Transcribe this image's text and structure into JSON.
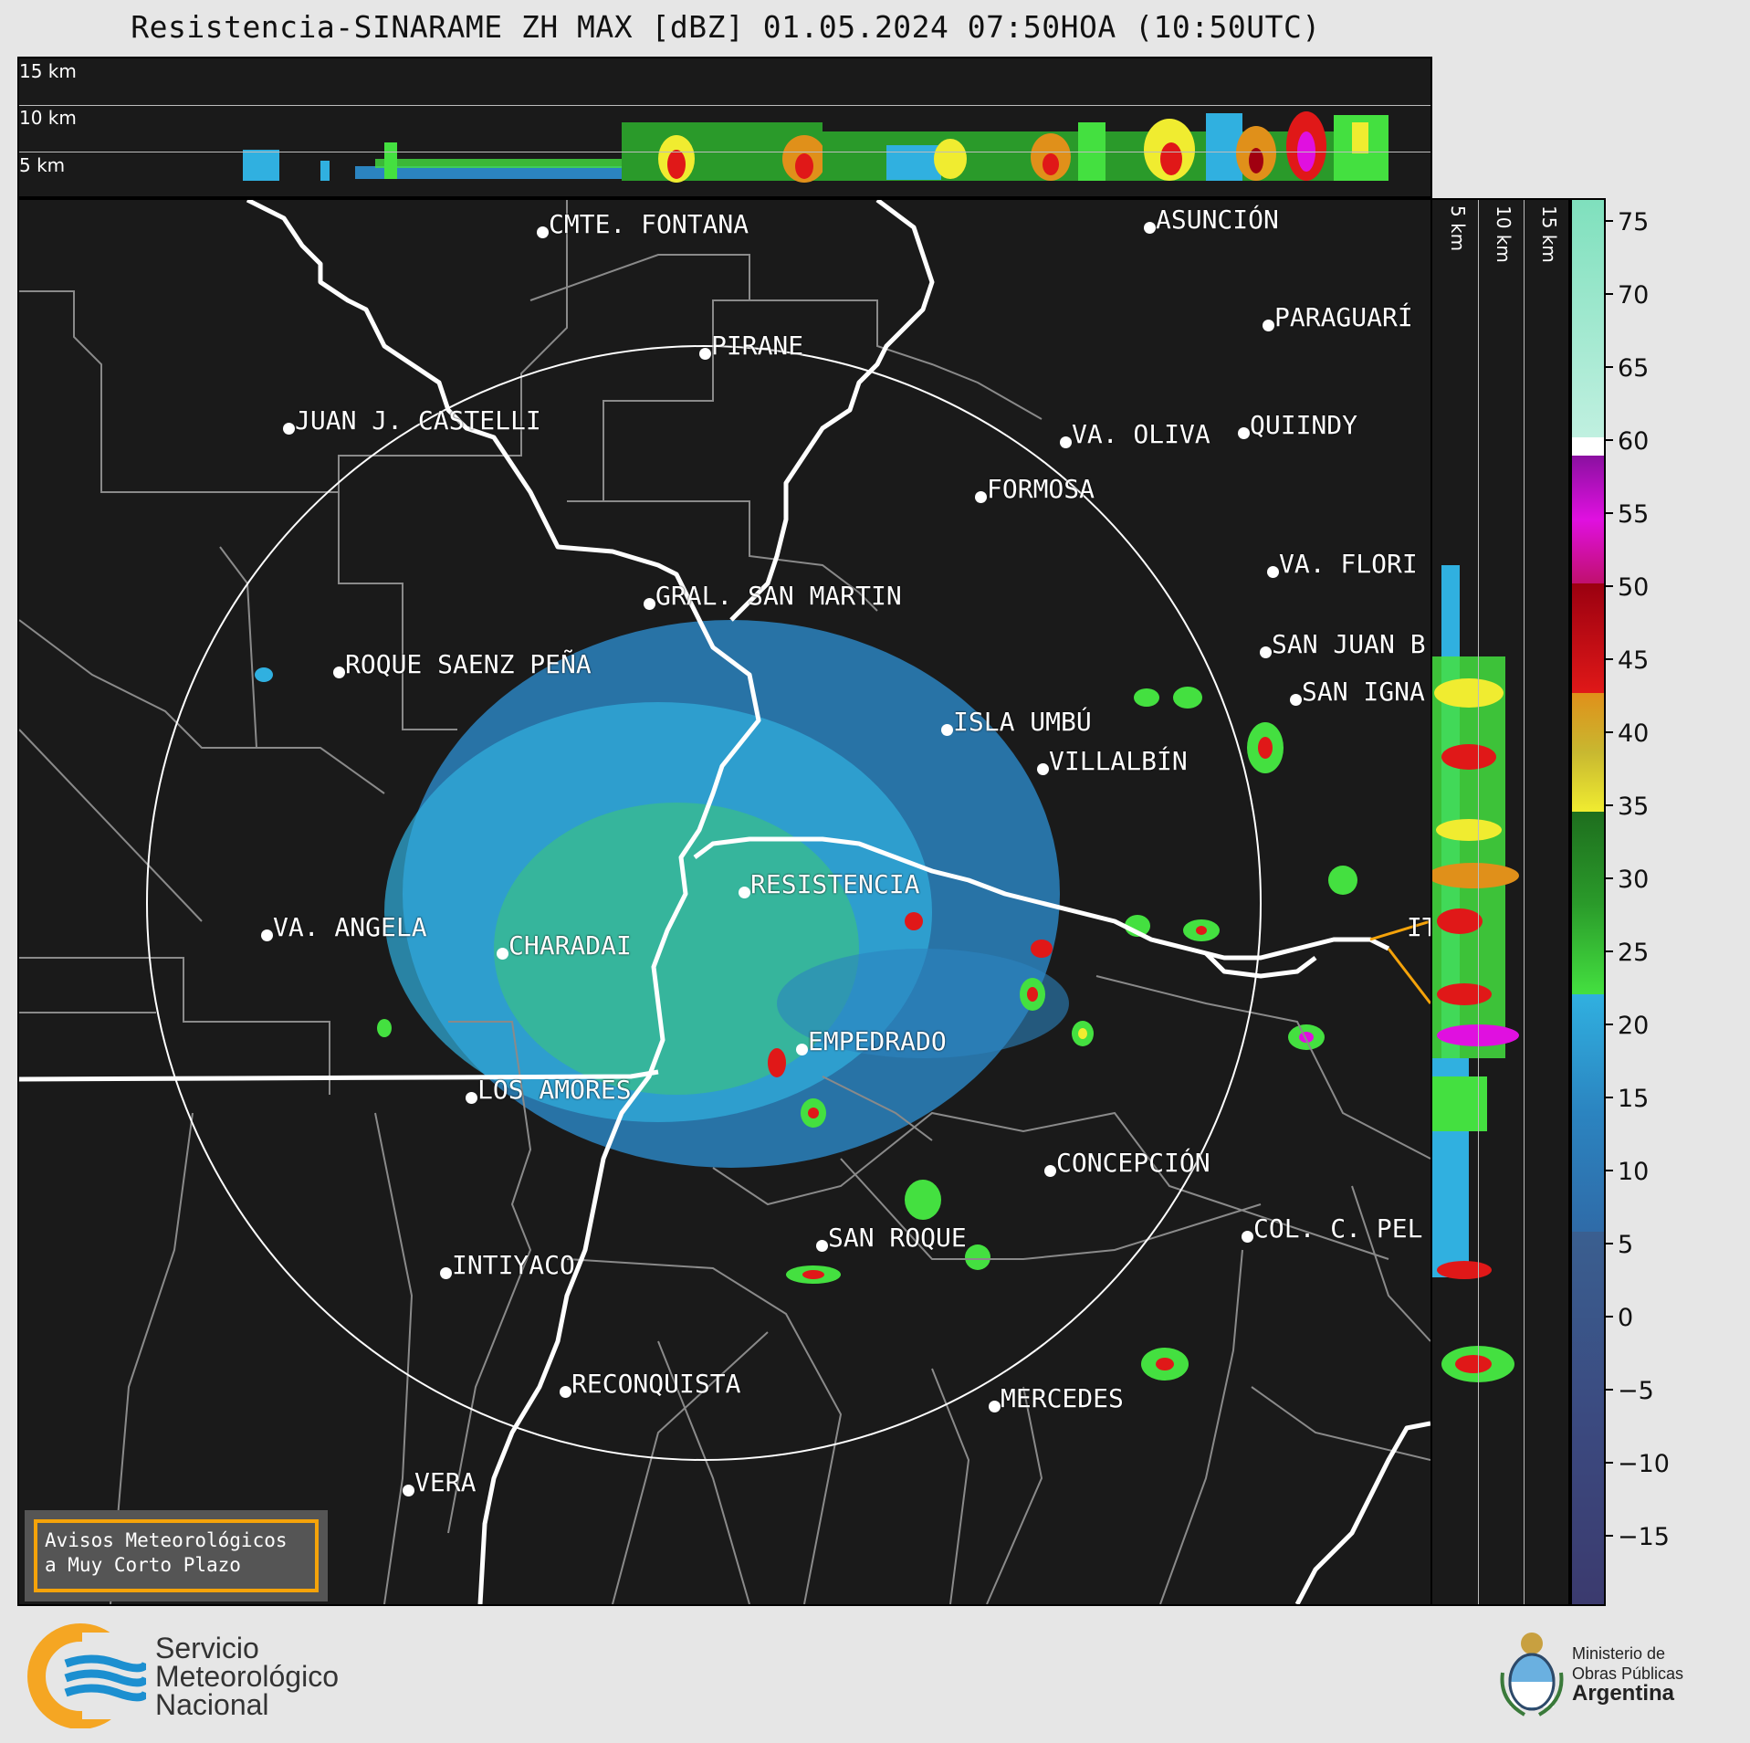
{
  "title": "Resistencia-SINARAME ZH MAX [dBZ] 01.05.2024 07:50HOA (10:50UTC)",
  "altitude_labels": [
    "15 km",
    "10 km",
    "5 km"
  ],
  "cities": [
    {
      "name": "CMTE. FONTANA"
    },
    {
      "name": "PIRANE"
    },
    {
      "name": "JUAN J. CASTELLI"
    },
    {
      "name": "ASUNCIÓN"
    },
    {
      "name": "PARAGUARÍ"
    },
    {
      "name": "QUIINDY"
    },
    {
      "name": "VA. OLIVA"
    },
    {
      "name": "FORMOSA"
    },
    {
      "name": "VA. FLORI"
    },
    {
      "name": "GRAL. SAN MARTIN"
    },
    {
      "name": "SAN JUAN B"
    },
    {
      "name": "ROQUE SAENZ PEÑA"
    },
    {
      "name": "SAN IGNA"
    },
    {
      "name": "ISLA UMBÚ"
    },
    {
      "name": "VILLALBÍN"
    },
    {
      "name": "RESISTENCIA"
    },
    {
      "name": "VA. ANGELA"
    },
    {
      "name": "CHARADAI"
    },
    {
      "name": "IT"
    },
    {
      "name": "EMPEDRADO"
    },
    {
      "name": "LOS AMORES"
    },
    {
      "name": "CONCEPCIÓN"
    },
    {
      "name": "SAN ROQUE"
    },
    {
      "name": "COL. C. PEL"
    },
    {
      "name": "INTIYACO"
    },
    {
      "name": "RECONQUISTA"
    },
    {
      "name": "MERCEDES"
    },
    {
      "name": "VERA"
    }
  ],
  "colorbar": {
    "ticks": [
      "75",
      "70",
      "65",
      "60",
      "55",
      "50",
      "45",
      "40",
      "35",
      "30",
      "25",
      "20",
      "15",
      "10",
      "5",
      "0",
      "−5",
      "−10",
      "−15"
    ],
    "colors": {
      "purple_dark": "#3b3a6e",
      "blue_grey": "#3f5d8f",
      "blue": "#2b84c0",
      "light_blue": "#30b0e0",
      "green_light": "#44e040",
      "green": "#2a9a2a",
      "green_dark": "#1e6e1e",
      "yellow": "#f0ec30",
      "olive": "#c8b830",
      "orange": "#e0901a",
      "red": "#e01818",
      "dark_red": "#a00010",
      "magenta": "#e010e0",
      "purple": "#9010a0",
      "white": "#ffffff",
      "mint": "#80e0c0"
    }
  },
  "warning_box": {
    "line1": "Avisos Meteorológicos",
    "line2": "a Muy Corto Plazo"
  },
  "logo_smn": {
    "line1": "Servicio",
    "line2": "Meteorológico",
    "line3": "Nacional"
  },
  "logo_ministry": {
    "line1": "Ministerio de",
    "line2": "Obras Públicas",
    "line3": "Argentina"
  }
}
